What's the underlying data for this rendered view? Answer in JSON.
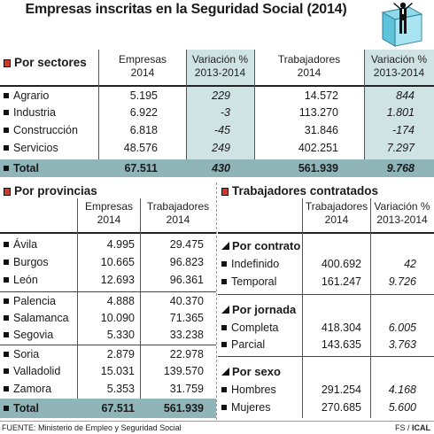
{
  "title": "Empresas inscritas en la Seguridad Social (2014)",
  "sectores": {
    "title": "Por sectores",
    "headers": {
      "empresas": [
        "Empresas",
        "2014"
      ],
      "var_emp": [
        "Variación %",
        "2013-2014"
      ],
      "trabajadores": [
        "Trabajadores",
        "2014"
      ],
      "var_trab": [
        "Variación %",
        "2013-2014"
      ]
    },
    "rows": [
      {
        "label": "Agrario",
        "empresas": "5.195",
        "var_emp": "229",
        "trabajadores": "14.572",
        "var_trab": "844"
      },
      {
        "label": "Industria",
        "empresas": "6.922",
        "var_emp": "-3",
        "trabajadores": "113.270",
        "var_trab": "1.801"
      },
      {
        "label": "Construcción",
        "empresas": "6.818",
        "var_emp": "-45",
        "trabajadores": "31.846",
        "var_trab": "-174"
      },
      {
        "label": "Servicios",
        "empresas": "48.576",
        "var_emp": "249",
        "trabajadores": "402.251",
        "var_trab": "7.297"
      }
    ],
    "total": {
      "label": "Total",
      "empresas": "67.511",
      "var_emp": "430",
      "trabajadores": "561.939",
      "var_trab": "9.768"
    }
  },
  "provincias": {
    "title": "Por provincias",
    "headers": {
      "empresas": [
        "Empresas",
        "2014"
      ],
      "trabajadores": [
        "Trabajadores",
        "2014"
      ]
    },
    "rows": [
      {
        "label": "Ávila",
        "empresas": "4.995",
        "trabajadores": "29.475"
      },
      {
        "label": "Burgos",
        "empresas": "10.665",
        "trabajadores": "96.823"
      },
      {
        "label": "León",
        "empresas": "12.693",
        "trabajadores": "96.361"
      },
      {
        "label": "Palencia",
        "empresas": "4.888",
        "trabajadores": "40.370"
      },
      {
        "label": "Salamanca",
        "empresas": "10.090",
        "trabajadores": "71.365"
      },
      {
        "label": "Segovia",
        "empresas": "5.330",
        "trabajadores": "33.238"
      },
      {
        "label": "Soria",
        "empresas": "2.879",
        "trabajadores": "22.978"
      },
      {
        "label": "Valladolid",
        "empresas": "15.031",
        "trabajadores": "139.570"
      },
      {
        "label": "Zamora",
        "empresas": "5.353",
        "trabajadores": "31.759"
      }
    ],
    "total": {
      "label": "Total",
      "empresas": "67.511",
      "trabajadores": "561.939"
    }
  },
  "contratados": {
    "title": "Trabajadores contratados",
    "headers": {
      "trabajadores": [
        "Trabajadores",
        "2014"
      ],
      "variacion": [
        "Variación %",
        "2013-2014"
      ]
    },
    "groups": [
      {
        "title": "Por contrato",
        "rows": [
          {
            "label": "Indefinido",
            "trabajadores": "400.692",
            "variacion": "42"
          },
          {
            "label": "Temporal",
            "trabajadores": "161.247",
            "variacion": "9.726"
          }
        ]
      },
      {
        "title": "Por jornada",
        "rows": [
          {
            "label": "Completa",
            "trabajadores": "418.304",
            "variacion": "6.005"
          },
          {
            "label": "Parcial",
            "trabajadores": "143.635",
            "variacion": "3.763"
          }
        ]
      },
      {
        "title": "Por sexo",
        "rows": [
          {
            "label": "Hombres",
            "trabajadores": "291.254",
            "variacion": "4.168"
          },
          {
            "label": "Mujeres",
            "trabajadores": "270.685",
            "variacion": "5.600"
          }
        ]
      }
    ]
  },
  "footer": {
    "source": "FUENTE: Ministerio de Empleo y Seguridad Social",
    "credit_prefix": "FS / ",
    "credit_brand": "ICAL"
  },
  "chart_data": {
    "type": "table",
    "title": "Empresas inscritas en la Seguridad Social (2014)",
    "tables": [
      {
        "name": "Por sectores",
        "columns": [
          "Empresas 2014",
          "Variación % 2013-2014",
          "Trabajadores 2014",
          "Variación % 2013-2014"
        ],
        "rows": [
          [
            "Agrario",
            5195,
            229,
            14572,
            844
          ],
          [
            "Industria",
            6922,
            -3,
            113270,
            1801
          ],
          [
            "Construcción",
            6818,
            -45,
            31846,
            -174
          ],
          [
            "Servicios",
            48576,
            249,
            402251,
            7297
          ],
          [
            "Total",
            67511,
            430,
            561939,
            9768
          ]
        ]
      },
      {
        "name": "Por provincias",
        "columns": [
          "Empresas 2014",
          "Trabajadores 2014"
        ],
        "rows": [
          [
            "Ávila",
            4995,
            29475
          ],
          [
            "Burgos",
            10665,
            96823
          ],
          [
            "León",
            12693,
            96361
          ],
          [
            "Palencia",
            4888,
            40370
          ],
          [
            "Salamanca",
            10090,
            71365
          ],
          [
            "Segovia",
            5330,
            33238
          ],
          [
            "Soria",
            2879,
            22978
          ],
          [
            "Valladolid",
            15031,
            139570
          ],
          [
            "Zamora",
            5353,
            31759
          ],
          [
            "Total",
            67511,
            561939
          ]
        ]
      },
      {
        "name": "Trabajadores contratados",
        "columns": [
          "Trabajadores 2014",
          "Variación % 2013-2014"
        ],
        "rows": [
          [
            "Indefinido",
            400692,
            42
          ],
          [
            "Temporal",
            161247,
            9726
          ],
          [
            "Completa",
            418304,
            6005
          ],
          [
            "Parcial",
            143635,
            3763
          ],
          [
            "Hombres",
            291254,
            4168
          ],
          [
            "Mujeres",
            270685,
            5600
          ]
        ]
      }
    ]
  }
}
